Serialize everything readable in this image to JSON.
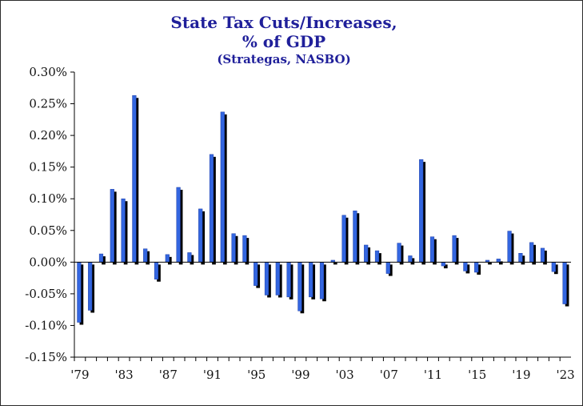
{
  "chart_data": {
    "type": "bar",
    "title": "State Tax Cuts/Increases,",
    "subtitle": "% of GDP",
    "source": "(Strategas, NASBO)",
    "ylim": [
      -0.15,
      0.3
    ],
    "yticks": [
      0.3,
      0.25,
      0.2,
      0.15,
      0.1,
      0.05,
      0.0,
      -0.05,
      -0.1,
      -0.15
    ],
    "ytick_labels": [
      "0.30%",
      "0.25%",
      "0.20%",
      "0.15%",
      "0.10%",
      "0.05%",
      "0.00%",
      "-0.05%",
      "-0.10%",
      "-0.15%"
    ],
    "xtick_labels": [
      {
        "year": 1979,
        "label": "'79"
      },
      {
        "year": 1983,
        "label": "'83"
      },
      {
        "year": 1987,
        "label": "'87"
      },
      {
        "year": 1991,
        "label": "'91"
      },
      {
        "year": 1995,
        "label": "'95"
      },
      {
        "year": 1999,
        "label": "'99"
      },
      {
        "year": 2003,
        "label": "'03"
      },
      {
        "year": 2007,
        "label": "'07"
      },
      {
        "year": 2011,
        "label": "'11"
      },
      {
        "year": 2015,
        "label": "'15"
      },
      {
        "year": 2019,
        "label": "'19"
      },
      {
        "year": 2023,
        "label": "'23"
      }
    ],
    "x": [
      1979,
      1980,
      1981,
      1982,
      1983,
      1984,
      1985,
      1986,
      1987,
      1988,
      1989,
      1990,
      1991,
      1992,
      1993,
      1994,
      1995,
      1996,
      1997,
      1998,
      1999,
      2000,
      2001,
      2002,
      2003,
      2004,
      2005,
      2006,
      2007,
      2008,
      2009,
      2010,
      2011,
      2012,
      2013,
      2014,
      2015,
      2016,
      2017,
      2018,
      2019,
      2020,
      2021,
      2022,
      2023
    ],
    "values": [
      -0.095,
      -0.076,
      0.013,
      0.115,
      0.1,
      0.263,
      0.021,
      -0.027,
      0.012,
      0.118,
      0.015,
      0.084,
      0.17,
      0.237,
      0.045,
      0.042,
      -0.037,
      -0.052,
      -0.052,
      -0.055,
      -0.077,
      -0.055,
      -0.058,
      0.003,
      0.074,
      0.081,
      0.027,
      0.018,
      -0.018,
      0.03,
      0.01,
      0.162,
      0.04,
      -0.006,
      0.042,
      -0.014,
      -0.016,
      0.003,
      0.005,
      0.049,
      0.014,
      0.031,
      0.022,
      -0.015,
      -0.066
    ],
    "bar_color": "#3366e0",
    "shadow_color": "#000000",
    "grid": false,
    "legend": "none"
  }
}
